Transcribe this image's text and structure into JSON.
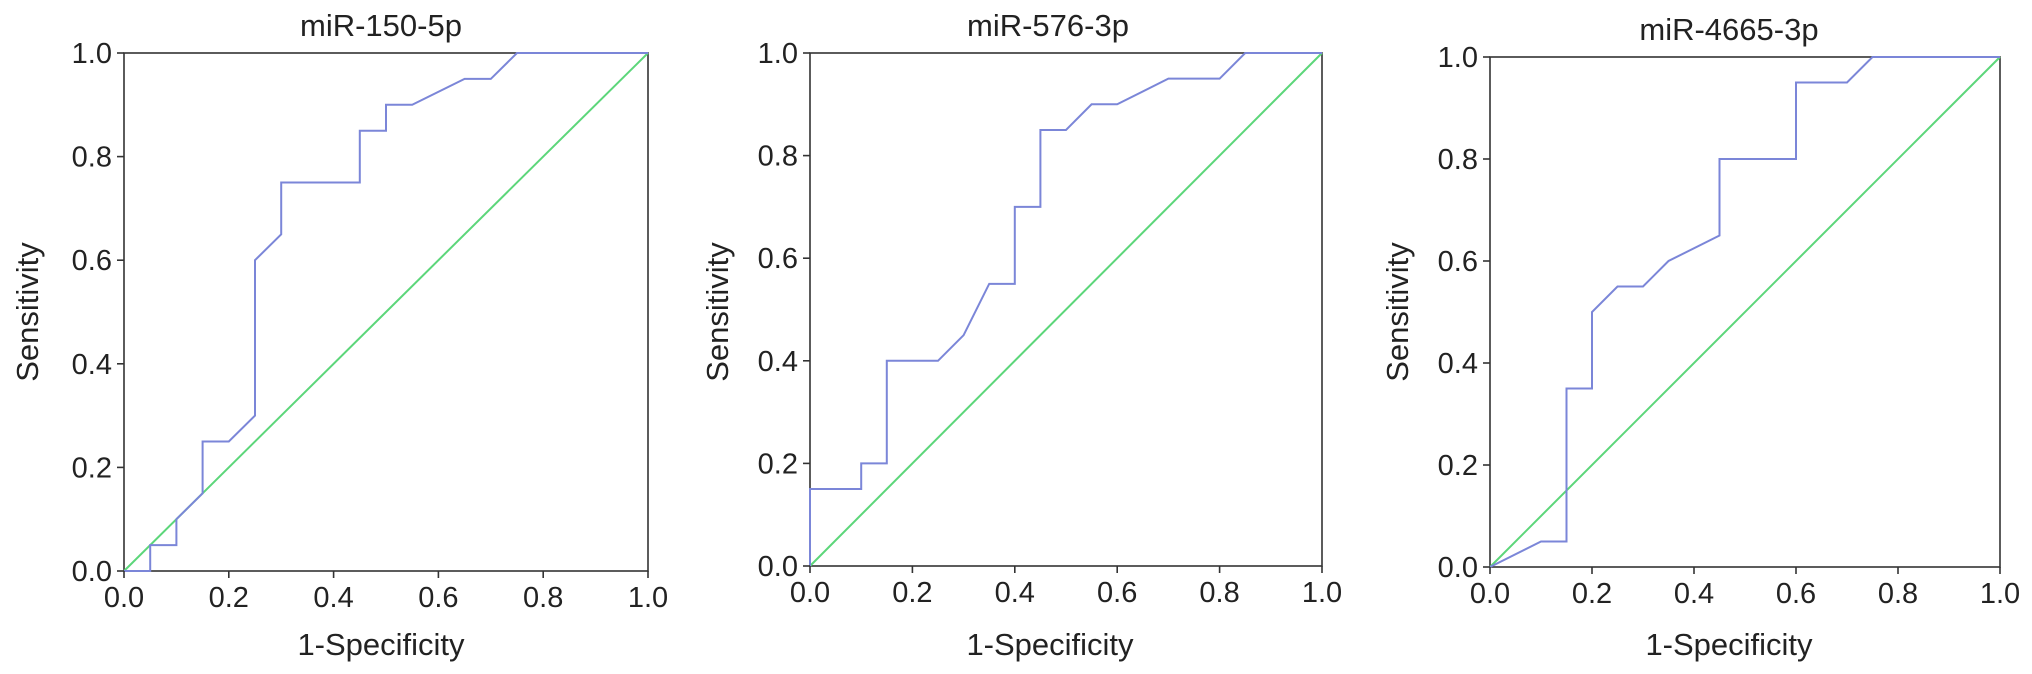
{
  "chart_data": [
    {
      "type": "line",
      "title": "miR-150-5p",
      "xlabel": "1-Specificity",
      "ylabel": "Sensitivity",
      "xlim": [
        0,
        1
      ],
      "ylim": [
        0,
        1
      ],
      "xticks": [
        "0.0",
        "0.2",
        "0.4",
        "0.6",
        "0.8",
        "1.0"
      ],
      "yticks": [
        "0.0",
        "0.2",
        "0.4",
        "0.6",
        "0.8",
        "1.0"
      ],
      "grid": false,
      "series": [
        {
          "color": "#7b86d8",
          "points": [
            [
              0,
              0
            ],
            [
              0.05,
              0
            ],
            [
              0.05,
              0.05
            ],
            [
              0.1,
              0.05
            ],
            [
              0.1,
              0.1
            ],
            [
              0.15,
              0.15
            ],
            [
              0.15,
              0.25
            ],
            [
              0.2,
              0.25
            ],
            [
              0.25,
              0.3
            ],
            [
              0.25,
              0.6
            ],
            [
              0.3,
              0.65
            ],
            [
              0.3,
              0.75
            ],
            [
              0.45,
              0.75
            ],
            [
              0.45,
              0.85
            ],
            [
              0.5,
              0.85
            ],
            [
              0.5,
              0.9
            ],
            [
              0.55,
              0.9
            ],
            [
              0.65,
              0.95
            ],
            [
              0.7,
              0.95
            ],
            [
              0.75,
              1.0
            ],
            [
              1.0,
              1.0
            ]
          ]
        },
        {
          "color": "#5cd67a",
          "points": [
            [
              0,
              0
            ],
            [
              1,
              1
            ]
          ]
        }
      ]
    },
    {
      "type": "line",
      "title": "miR-576-3p",
      "xlabel": "1-Specificity",
      "ylabel": "Sensitivity",
      "xlim": [
        0,
        1
      ],
      "ylim": [
        0,
        1
      ],
      "xticks": [
        "0.0",
        "0.2",
        "0.4",
        "0.6",
        "0.8",
        "1.0"
      ],
      "yticks": [
        "0.0",
        "0.2",
        "0.4",
        "0.6",
        "0.8",
        "1.0"
      ],
      "grid": false,
      "series": [
        {
          "color": "#7b86d8",
          "points": [
            [
              0,
              0
            ],
            [
              0,
              0.15
            ],
            [
              0.1,
              0.15
            ],
            [
              0.1,
              0.2
            ],
            [
              0.15,
              0.2
            ],
            [
              0.15,
              0.4
            ],
            [
              0.25,
              0.4
            ],
            [
              0.3,
              0.45
            ],
            [
              0.35,
              0.55
            ],
            [
              0.4,
              0.55
            ],
            [
              0.4,
              0.7
            ],
            [
              0.45,
              0.7
            ],
            [
              0.45,
              0.85
            ],
            [
              0.5,
              0.85
            ],
            [
              0.55,
              0.9
            ],
            [
              0.6,
              0.9
            ],
            [
              0.7,
              0.95
            ],
            [
              0.8,
              0.95
            ],
            [
              0.85,
              1.0
            ],
            [
              1.0,
              1.0
            ]
          ]
        },
        {
          "color": "#5cd67a",
          "points": [
            [
              0,
              0
            ],
            [
              1,
              1
            ]
          ]
        }
      ]
    },
    {
      "type": "line",
      "title": "miR-4665-3p",
      "xlabel": "1-Specificity",
      "ylabel": "Sensitivity",
      "xlim": [
        0,
        1
      ],
      "ylim": [
        0,
        1
      ],
      "xticks": [
        "0.0",
        "0.2",
        "0.4",
        "0.6",
        "0.8",
        "1.0"
      ],
      "yticks": [
        "0.0",
        "0.2",
        "0.4",
        "0.6",
        "0.8",
        "1.0"
      ],
      "grid": false,
      "series": [
        {
          "color": "#7b86d8",
          "points": [
            [
              0,
              0
            ],
            [
              0.1,
              0.05
            ],
            [
              0.15,
              0.05
            ],
            [
              0.15,
              0.35
            ],
            [
              0.2,
              0.35
            ],
            [
              0.2,
              0.5
            ],
            [
              0.25,
              0.55
            ],
            [
              0.3,
              0.55
            ],
            [
              0.35,
              0.6
            ],
            [
              0.45,
              0.65
            ],
            [
              0.45,
              0.8
            ],
            [
              0.6,
              0.8
            ],
            [
              0.6,
              0.95
            ],
            [
              0.7,
              0.95
            ],
            [
              0.75,
              1.0
            ],
            [
              1.0,
              1.0
            ]
          ]
        },
        {
          "color": "#5cd67a",
          "points": [
            [
              0,
              0
            ],
            [
              1,
              1
            ]
          ]
        }
      ]
    }
  ]
}
